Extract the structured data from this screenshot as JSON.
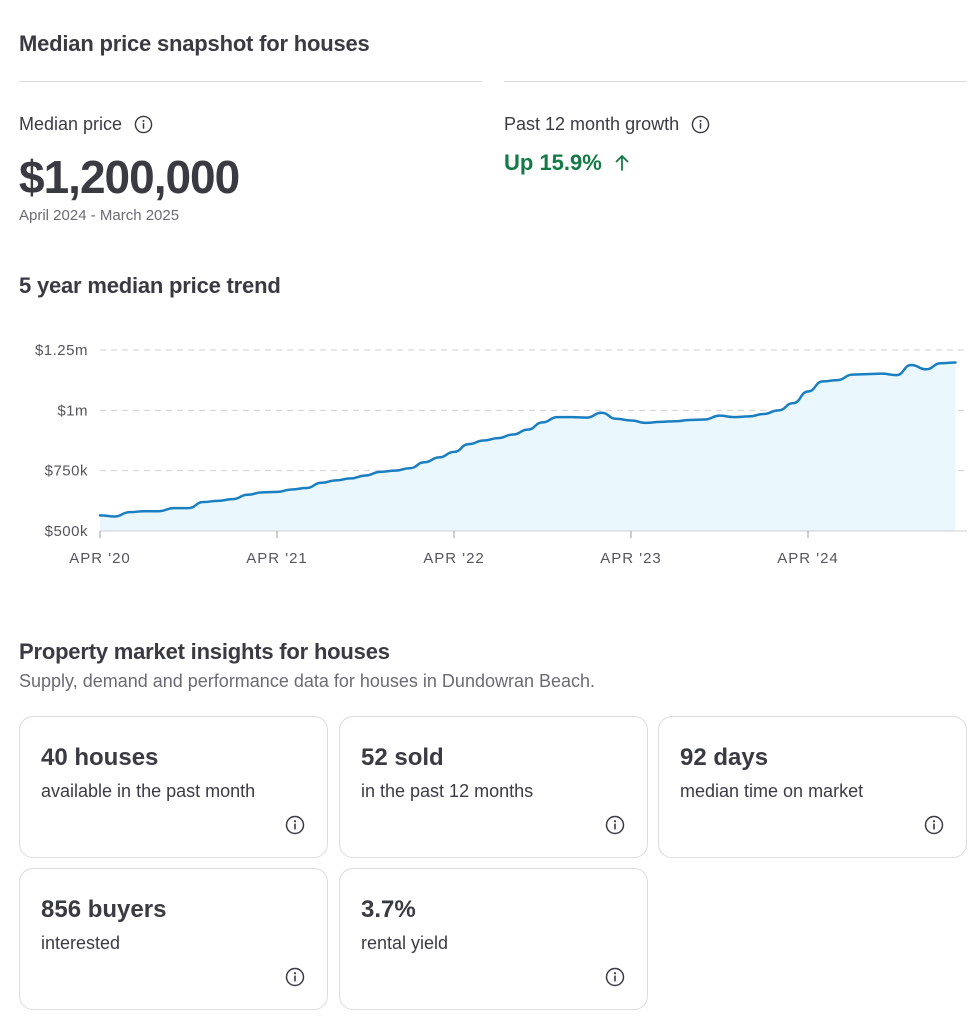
{
  "snapshot": {
    "title": "Median price snapshot for houses",
    "median_label": "Median price",
    "median_value": "$1,200,000",
    "period": "April 2024 - March 2025",
    "growth_label": "Past 12 month growth",
    "growth_value": "Up 15.9%"
  },
  "trend": {
    "title": "5 year median price trend"
  },
  "chart_data": {
    "type": "area",
    "title": "",
    "xlabel": "",
    "ylabel": "",
    "x_ticks": [
      "APR '20",
      "APR '21",
      "APR '22",
      "APR '23",
      "APR '24"
    ],
    "y_ticks": [
      "$1.25m",
      "$1m",
      "$750k",
      "$500k"
    ],
    "y_tick_values": [
      1250000,
      1000000,
      750000,
      500000
    ],
    "ylim": [
      500000,
      1250000
    ],
    "x_unit": "months since APR '20",
    "series": [
      {
        "name": "Median price",
        "color": "#1a7fc1",
        "fill": "#eaf7fc",
        "x": [
          0,
          1,
          2,
          3,
          4,
          5,
          6,
          7,
          8,
          9,
          10,
          11,
          12,
          13,
          14,
          15,
          16,
          17,
          18,
          19,
          20,
          21,
          22,
          23,
          24,
          25,
          26,
          27,
          28,
          29,
          30,
          31,
          32,
          33,
          34,
          35,
          36,
          37,
          38,
          39,
          40,
          41,
          42,
          43,
          44,
          45,
          46,
          47,
          48,
          49,
          50,
          51,
          52,
          53,
          54,
          55,
          56,
          57,
          58
        ],
        "y": [
          565000,
          560000,
          578000,
          582000,
          582000,
          595000,
          595000,
          620000,
          625000,
          632000,
          650000,
          660000,
          662000,
          672000,
          678000,
          700000,
          710000,
          718000,
          730000,
          745000,
          750000,
          760000,
          785000,
          805000,
          828000,
          860000,
          875000,
          885000,
          900000,
          920000,
          950000,
          972000,
          972000,
          970000,
          990000,
          965000,
          958000,
          948000,
          952000,
          955000,
          960000,
          962000,
          978000,
          972000,
          975000,
          985000,
          1000000,
          1030000,
          1078000,
          1120000,
          1125000,
          1148000,
          1150000,
          1152000,
          1146000,
          1188000,
          1170000,
          1195000,
          1198000
        ]
      }
    ]
  },
  "insights": {
    "title": "Property market insights for houses",
    "subtitle": "Supply, demand and performance data for houses in Dundowran Beach.",
    "cards": [
      {
        "value": "40 houses",
        "desc": "available in the past month"
      },
      {
        "value": "52 sold",
        "desc": "in the past 12 months"
      },
      {
        "value": "92 days",
        "desc": "median time on market"
      },
      {
        "value": "856 buyers",
        "desc": "interested"
      },
      {
        "value": "3.7%",
        "desc": "rental yield"
      }
    ]
  },
  "icons": {
    "info": "info-circle-icon",
    "arrow": "arrow-up-icon"
  },
  "colors": {
    "growth": "#137a45",
    "line": "#1a7fc1",
    "area": "#eaf7fc"
  }
}
